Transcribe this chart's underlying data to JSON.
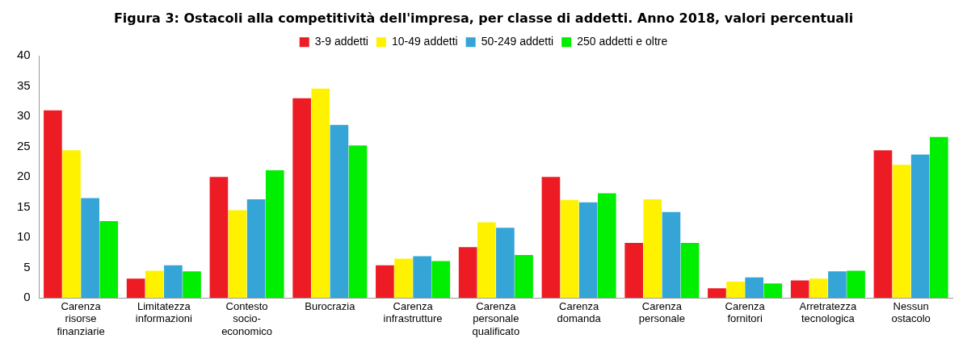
{
  "chart_data": {
    "type": "bar",
    "title": "Figura 3: Ostacoli alla competitività dell'impresa, per classe di addetti. Anno 2018, valori percentuali",
    "categories": [
      "Carenza risorse finanziarie",
      "Limitatezza informazioni",
      "Contesto socio-economico",
      "Burocrazia",
      "Carenza infrastrutture",
      "Carenza personale qualificato",
      "Carenza domanda",
      "Carenza personale",
      "Carenza fornitori",
      "Arretratezza tecnologica",
      "Nessun ostacolo"
    ],
    "series": [
      {
        "name": "3-9 addetti",
        "color": "#ed1c24",
        "values": [
          31,
          3.2,
          20,
          33,
          5.4,
          8.4,
          20,
          9.1,
          1.6,
          2.9,
          24.4
        ]
      },
      {
        "name": "10-49 addetti",
        "color": "#fff200",
        "values": [
          24.4,
          4.5,
          14.5,
          34.6,
          6.5,
          12.5,
          16.2,
          16.3,
          2.7,
          3.2,
          22
        ]
      },
      {
        "name": "50-249 addetti",
        "color": "#35a4d6",
        "values": [
          16.5,
          5.4,
          16.3,
          28.6,
          6.9,
          11.6,
          15.8,
          14.2,
          3.4,
          4.4,
          23.7
        ]
      },
      {
        "name": "250 addetti e oltre",
        "color": "#00ee00",
        "values": [
          12.7,
          4.4,
          21.1,
          25.2,
          6.1,
          7.1,
          17.3,
          9.1,
          2.4,
          4.5,
          26.6
        ]
      }
    ],
    "ylim": [
      0,
      40
    ],
    "yticks": [
      0,
      5,
      10,
      15,
      20,
      25,
      30,
      35,
      40
    ],
    "grid": false,
    "legend": "top"
  }
}
